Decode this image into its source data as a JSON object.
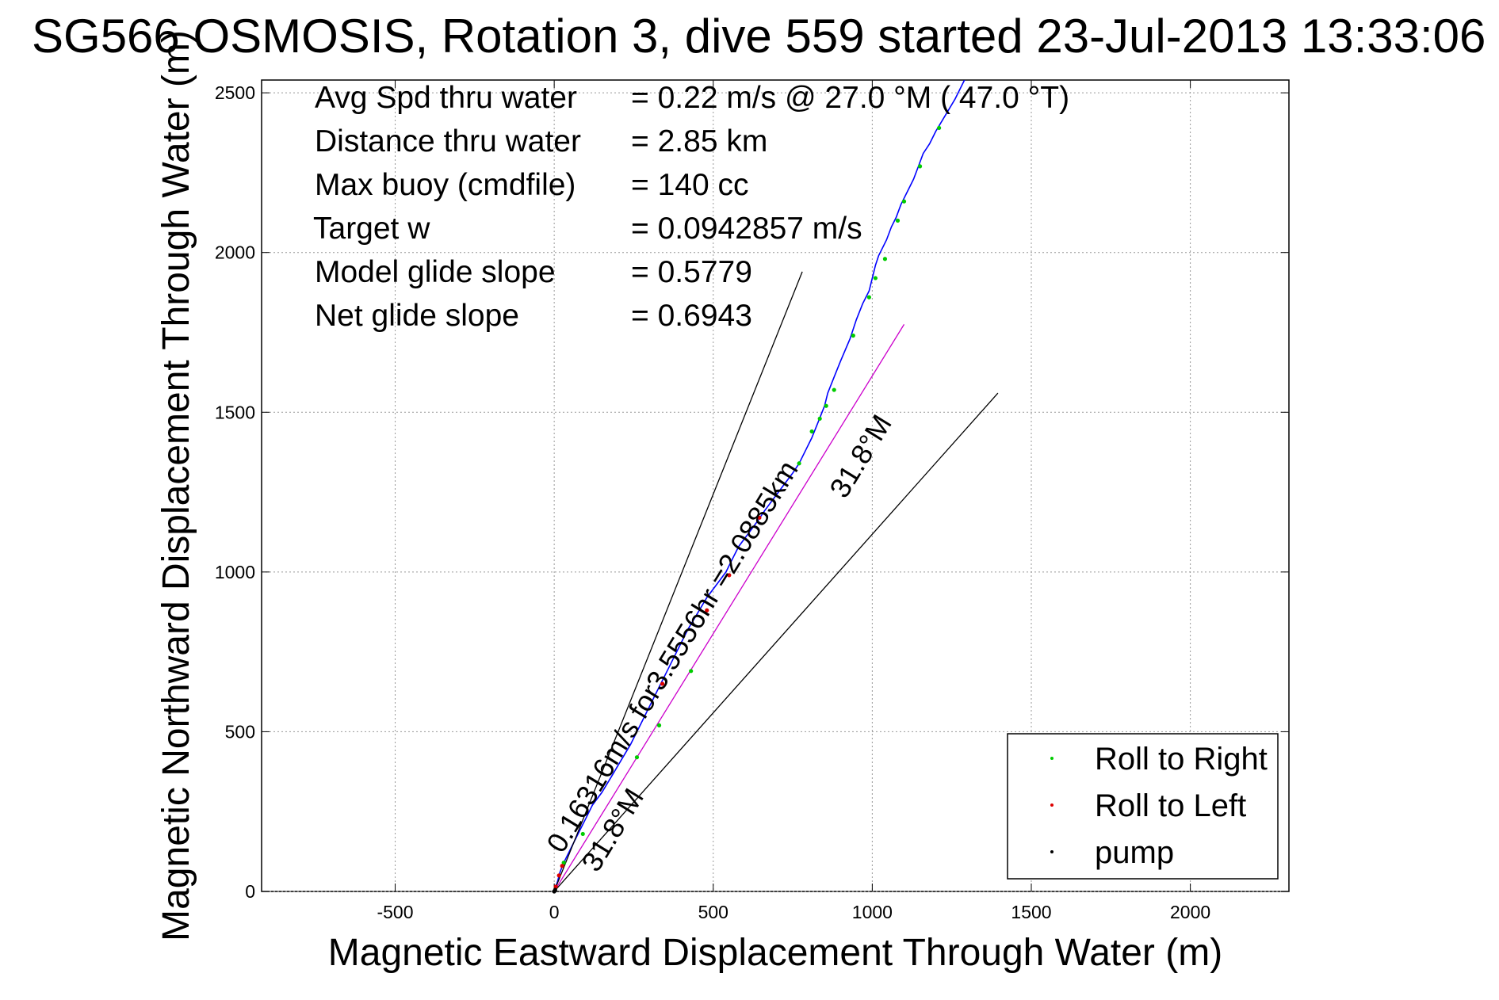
{
  "chart_data": {
    "type": "line",
    "title": "SG566 OSMOSIS, Rotation 3, dive 559 started 23-Jul-2013 13:33:06",
    "xlabel": "Magnetic Eastward Displacement Through Water (m)",
    "ylabel": "Magnetic Northward Displacement Through Water (m)",
    "xlim": [
      -920,
      2310
    ],
    "ylim": [
      0,
      2540
    ],
    "xticks": [
      -500,
      0,
      500,
      1000,
      1500,
      2000
    ],
    "yticks": [
      0,
      500,
      1000,
      1500,
      2000,
      2500
    ],
    "xtick_labels": [
      "-500",
      "0",
      "500",
      "1000",
      "1500",
      "2000"
    ],
    "ytick_labels": [
      "0",
      "500",
      "1000",
      "1500",
      "2000",
      "2500"
    ],
    "grid": true,
    "legend_position": "bottom-right",
    "stats": [
      {
        "label": "Avg Spd thru water",
        "value": "=  0.22 m/s @  27.0 °M ( 47.0 °T)"
      },
      {
        "label": "Distance thru water",
        "value": "=  2.85 km"
      },
      {
        "label": "Max buoy (cmdfile)",
        "value": "= 140 cc"
      },
      {
        "label": "Target w",
        "value": "= 0.0942857 m/s"
      },
      {
        "label": "Model glide slope",
        "value": "= 0.5779"
      },
      {
        "label": "Net glide slope",
        "value": "= 0.6943"
      }
    ],
    "legend": [
      {
        "label": "Roll to Right",
        "color": "#00cc00"
      },
      {
        "label": "Roll to Left",
        "color": "#dd0000"
      },
      {
        "label": "pump",
        "color": "#000000"
      }
    ],
    "annotations": {
      "heading_near": "31.8°M",
      "heading_far": "31.8°M",
      "velocity": "0.16316m/s for3.5556hr =2.0885km"
    },
    "series": [
      {
        "name": "track",
        "color": "#0000ff",
        "x": [
          0,
          10,
          18,
          30,
          45,
          60,
          80,
          100,
          120,
          150,
          180,
          210,
          240,
          270,
          300,
          330,
          360,
          390,
          420,
          450,
          480,
          510,
          540,
          560,
          580,
          610,
          640,
          660,
          690,
          720,
          750,
          770,
          790,
          810,
          830,
          850,
          860,
          880,
          900,
          930,
          950,
          970,
          990,
          1000,
          1010,
          1020,
          1030,
          1045,
          1060,
          1075,
          1090,
          1110,
          1130,
          1145,
          1160,
          1180,
          1200,
          1230,
          1260,
          1290
        ],
        "y": [
          0,
          30,
          60,
          90,
          120,
          150,
          190,
          230,
          270,
          310,
          360,
          410,
          460,
          520,
          580,
          640,
          700,
          760,
          820,
          870,
          920,
          960,
          1000,
          1040,
          1080,
          1120,
          1160,
          1190,
          1230,
          1270,
          1310,
          1340,
          1380,
          1420,
          1470,
          1520,
          1560,
          1610,
          1660,
          1730,
          1790,
          1840,
          1880,
          1920,
          1960,
          1990,
          2010,
          2040,
          2080,
          2110,
          2150,
          2190,
          2230,
          2270,
          2310,
          2340,
          2380,
          2430,
          2480,
          2540
        ]
      },
      {
        "name": "heading line",
        "color": "#cc00cc",
        "x": [
          0,
          1100
        ],
        "y": [
          0,
          1775
        ]
      },
      {
        "name": "glide cone left",
        "color": "#000000",
        "x": [
          0,
          780
        ],
        "y": [
          0,
          1940
        ]
      },
      {
        "name": "glide cone right",
        "color": "#000000",
        "x": [
          0,
          1395
        ],
        "y": [
          0,
          1560
        ]
      }
    ],
    "markers": {
      "right": {
        "x": [
          30,
          90,
          260,
          330,
          430,
          770,
          810,
          835,
          855,
          880,
          940,
          990,
          1010,
          1040,
          1080,
          1100,
          1150,
          1210
        ],
        "y": [
          90,
          180,
          420,
          520,
          690,
          1340,
          1440,
          1480,
          1520,
          1570,
          1740,
          1860,
          1920,
          1980,
          2100,
          2160,
          2270,
          2390
        ]
      },
      "left": {
        "x": [
          5,
          15,
          25,
          340,
          480,
          550,
          645
        ],
        "y": [
          15,
          50,
          80,
          650,
          880,
          990,
          1170
        ]
      },
      "pump": {
        "x": [
          0,
          3
        ],
        "y": [
          0,
          5
        ]
      }
    }
  }
}
